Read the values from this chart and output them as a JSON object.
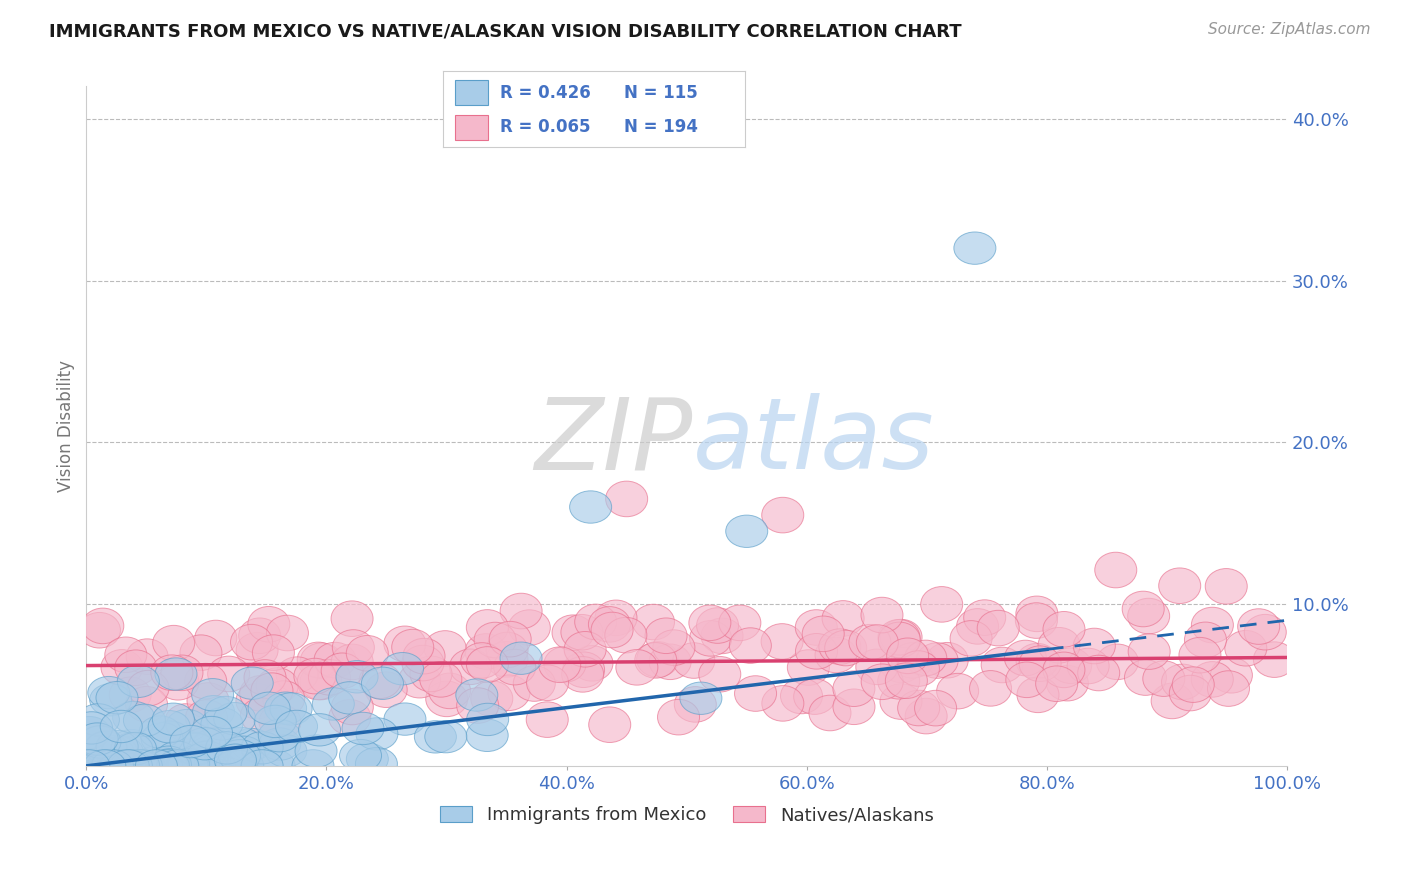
{
  "title": "IMMIGRANTS FROM MEXICO VS NATIVE/ALASKAN VISION DISABILITY CORRELATION CHART",
  "source_text": "Source: ZipAtlas.com",
  "ylabel": "Vision Disability",
  "watermark_zip": "ZIP",
  "watermark_atlas": "atlas",
  "legend_blue_r": "R = 0.426",
  "legend_blue_n": "N = 115",
  "legend_pink_r": "R = 0.065",
  "legend_pink_n": "N = 194",
  "blue_color": "#a8cce8",
  "pink_color": "#f5b8cb",
  "blue_edge_color": "#5a9ec9",
  "pink_edge_color": "#e8708e",
  "blue_line_color": "#2166ac",
  "pink_line_color": "#d94070",
  "r_blue": 0.426,
  "r_pink": 0.065,
  "n_blue": 115,
  "n_pink": 194,
  "xlim": [
    0,
    100
  ],
  "ylim": [
    0,
    42
  ],
  "yticks": [
    10,
    20,
    30,
    40
  ],
  "xticks": [
    0,
    20,
    40,
    60,
    80,
    100
  ],
  "background_color": "#ffffff",
  "grid_color": "#bbbbbb",
  "title_fontsize": 13,
  "legend_text_color": "#4472c4",
  "tick_label_color": "#4472c4",
  "ylabel_color": "#777777"
}
